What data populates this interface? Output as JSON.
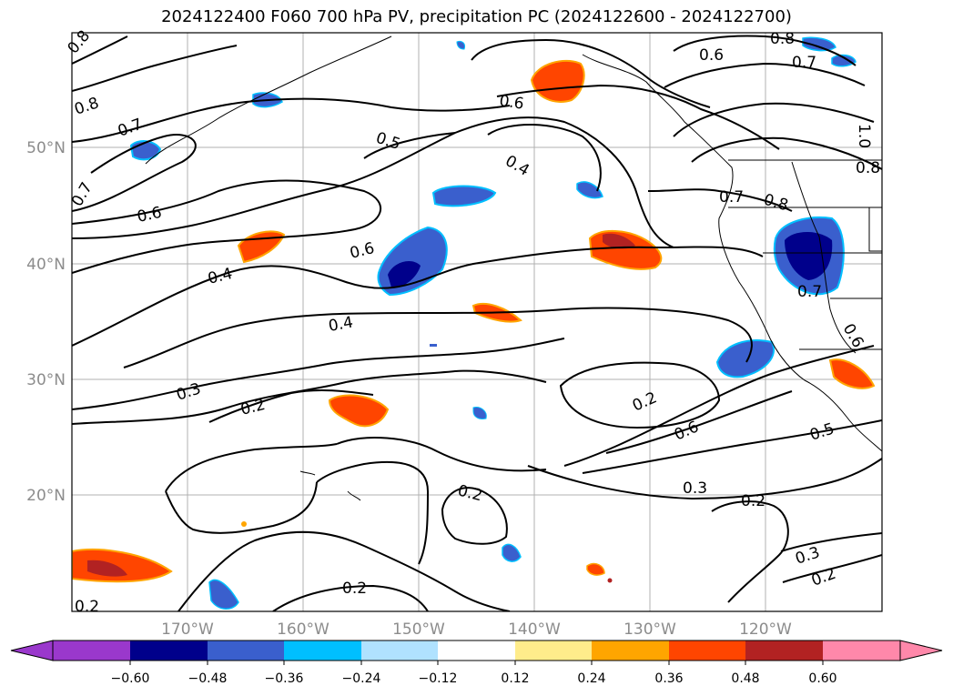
{
  "title": "2024122400 F060 700 hPa PV, precipitation PC (2024122600 - 2024122700)",
  "map": {
    "longitude_labels": [
      "170°W",
      "160°W",
      "150°W",
      "140°W",
      "130°W",
      "120°W"
    ],
    "latitude_labels": [
      "50°N",
      "40°N",
      "30°N",
      "20°N"
    ],
    "gridlines": true,
    "contour_labels": [
      "0.8",
      "0.8",
      "0.7",
      "0.7",
      "0.6",
      "0.4",
      "0.5",
      "0.4",
      "0.6",
      "0.6",
      "0.4",
      "0.3",
      "0.2",
      "0.2",
      "0.2",
      "0.2",
      "0.6",
      "0.3",
      "0.2",
      "0.5",
      "0.6",
      "0.8",
      "0.7",
      "0.7",
      "0.8",
      "1.0",
      "0.8",
      "0.7",
      "0.6",
      "0.3",
      "0.2",
      "0.2"
    ]
  },
  "colorbar": {
    "ticks": [
      "−0.60",
      "−0.48",
      "−0.36",
      "−0.24",
      "−0.12",
      "0.12",
      "0.24",
      "0.36",
      "0.48",
      "0.60"
    ],
    "colors": [
      "#9a38cc",
      "#00008b",
      "#3a5fcd",
      "#00bfff",
      "#b0e2ff",
      "#ffffff",
      "#ffec8b",
      "#ffa500",
      "#ff4500",
      "#b22222",
      "#ff88aa"
    ],
    "extend": "both"
  }
}
